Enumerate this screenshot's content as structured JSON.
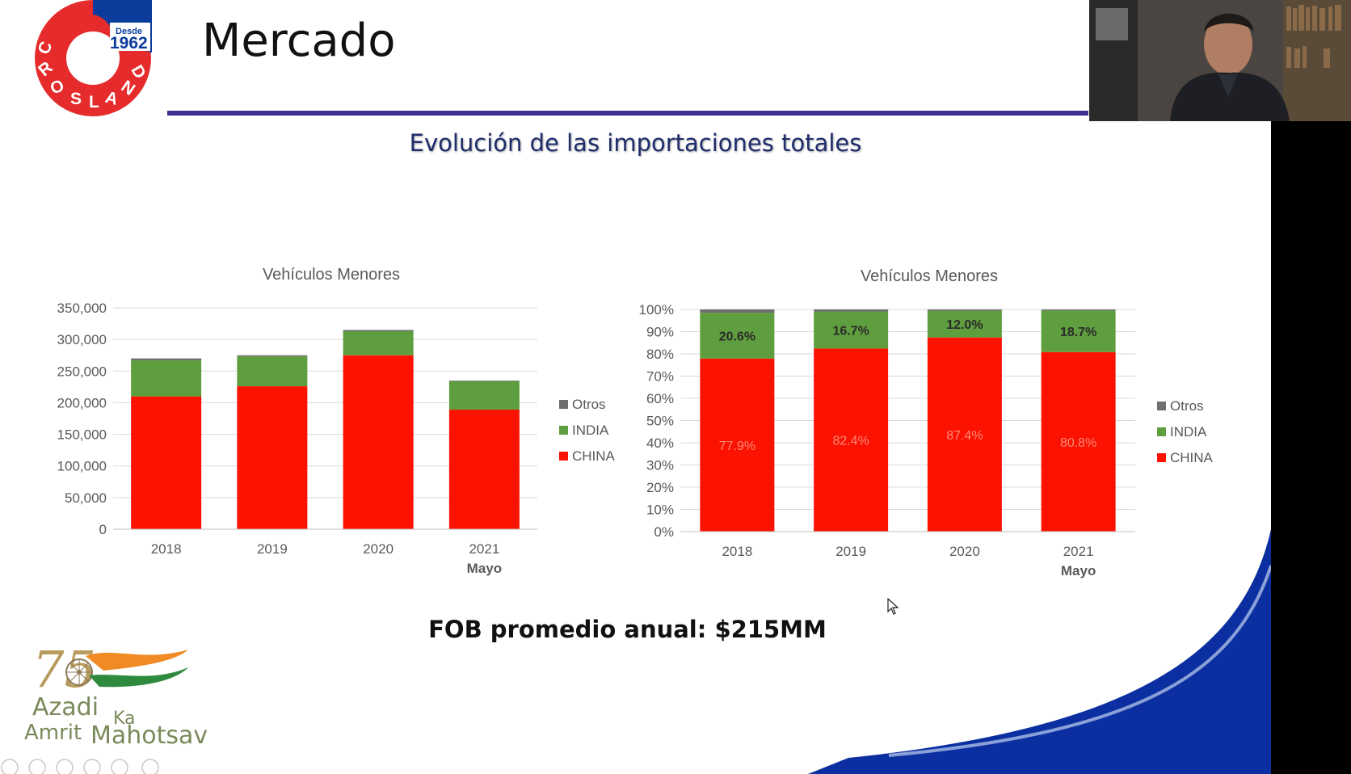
{
  "slide": {
    "title": "Mercado",
    "subtitle": "Evolución de las importaciones totales",
    "fob_text": "FOB promedio anual: $215MM"
  },
  "logo": {
    "brand": "CROSLAND",
    "since_label": "Desde",
    "since_year": "1962"
  },
  "azadi_logo": {
    "number": "75",
    "line1": "Azadi",
    "line2": "Ka",
    "line3": "Amrit",
    "line4": "Mahotsav"
  },
  "colors": {
    "china": "#fb1200",
    "india": "#5f9e3e",
    "otros": "#6e6e6e",
    "title_rule": "#3b2f8f",
    "swoosh": "#0b2fa0"
  },
  "chart_data": [
    {
      "type": "bar",
      "stacked": true,
      "title": "Vehículos Menores",
      "categories": [
        "2018",
        "2019",
        "2020",
        "2021"
      ],
      "category_sublabels": [
        "",
        "",
        "",
        "Mayo"
      ],
      "series": [
        {
          "name": "CHINA",
          "values": [
            210000,
            226000,
            275000,
            189000
          ]
        },
        {
          "name": "INDIA",
          "values": [
            57000,
            47000,
            38000,
            45000
          ]
        },
        {
          "name": "Otros",
          "values": [
            3000,
            2000,
            2000,
            1000
          ]
        }
      ],
      "ylim": [
        0,
        350000
      ],
      "yticks": [
        "0",
        "50,000",
        "100,000",
        "150,000",
        "200,000",
        "250,000",
        "300,000",
        "350,000"
      ],
      "legend": [
        "Otros",
        "INDIA",
        "CHINA"
      ],
      "legend_position": "right",
      "grid": true
    },
    {
      "type": "bar",
      "stacked": true,
      "percent": true,
      "title": "Vehículos Menores",
      "categories": [
        "2018",
        "2019",
        "2020",
        "2021"
      ],
      "category_sublabels": [
        "",
        "",
        "",
        "Mayo"
      ],
      "series": [
        {
          "name": "CHINA",
          "values": [
            77.9,
            82.4,
            87.4,
            80.8
          ],
          "labels": [
            "77.9%",
            "82.4%",
            "87.4%",
            "80.8%"
          ]
        },
        {
          "name": "INDIA",
          "values": [
            20.6,
            16.7,
            12.0,
            18.7
          ],
          "labels": [
            "20.6%",
            "16.7%",
            "12.0%",
            "18.7%"
          ]
        },
        {
          "name": "Otros",
          "values": [
            1.5,
            0.9,
            0.6,
            0.5
          ]
        }
      ],
      "ylim": [
        0,
        100
      ],
      "yticks": [
        "0%",
        "10%",
        "20%",
        "30%",
        "40%",
        "50%",
        "60%",
        "70%",
        "80%",
        "90%",
        "100%"
      ],
      "legend": [
        "Otros",
        "INDIA",
        "CHINA"
      ],
      "legend_position": "right",
      "grid": true
    }
  ]
}
